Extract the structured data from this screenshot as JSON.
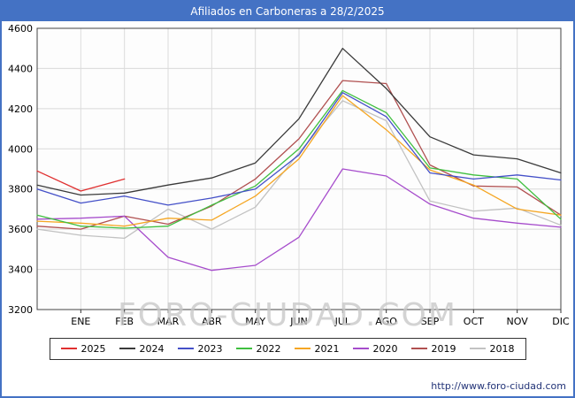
{
  "header": {
    "title": "Afiliados en Carboneras a 28/2/2025"
  },
  "watermark": {
    "text": "FORO-CIUDAD.COM"
  },
  "footer": {
    "url": "http://www.foro-ciudad.com"
  },
  "chart_data": {
    "type": "line",
    "title": "Afiliados en Carboneras a 28/2/2025",
    "categories": [
      "ENE",
      "FEB",
      "MAR",
      "ABR",
      "MAY",
      "JUN",
      "JUL",
      "AGO",
      "SEP",
      "OCT",
      "NOV",
      "DIC"
    ],
    "ylim": [
      3200,
      4600
    ],
    "ytick_step": 200,
    "grid": true,
    "legend_position": "bottom",
    "series": [
      {
        "name": "2025",
        "color": "#e03030",
        "start": 3890,
        "values": [
          3790,
          3850
        ]
      },
      {
        "name": "2024",
        "color": "#3a3a3a",
        "start": 3820,
        "values": [
          3770,
          3780,
          3820,
          3855,
          3930,
          4150,
          4500,
          4300,
          4060,
          3970,
          3950,
          3880
        ]
      },
      {
        "name": "2023",
        "color": "#4450c8",
        "start": 3800,
        "values": [
          3730,
          3765,
          3720,
          3755,
          3800,
          3970,
          4280,
          4160,
          3880,
          3850,
          3870,
          3845
        ]
      },
      {
        "name": "2022",
        "color": "#3fbf3f",
        "start": 3670,
        "values": [
          3615,
          3605,
          3615,
          3720,
          3815,
          4000,
          4290,
          4180,
          3905,
          3870,
          3850,
          3650
        ]
      },
      {
        "name": "2021",
        "color": "#f5a623",
        "start": 3640,
        "values": [
          3630,
          3615,
          3655,
          3645,
          3765,
          3950,
          4265,
          4095,
          3895,
          3820,
          3700,
          3670
        ]
      },
      {
        "name": "2020",
        "color": "#a64ccc",
        "start": 3650,
        "values": [
          3655,
          3665,
          3460,
          3395,
          3420,
          3560,
          3900,
          3865,
          3725,
          3655,
          3630,
          3610
        ]
      },
      {
        "name": "2019",
        "color": "#b05050",
        "start": 3615,
        "values": [
          3600,
          3665,
          3625,
          3715,
          3850,
          4050,
          4340,
          4325,
          3920,
          3815,
          3810,
          3670
        ]
      },
      {
        "name": "2018",
        "color": "#c2c2c2",
        "start": 3600,
        "values": [
          3570,
          3555,
          3700,
          3600,
          3710,
          3980,
          4240,
          4140,
          3740,
          3690,
          3705,
          3620
        ]
      }
    ]
  }
}
